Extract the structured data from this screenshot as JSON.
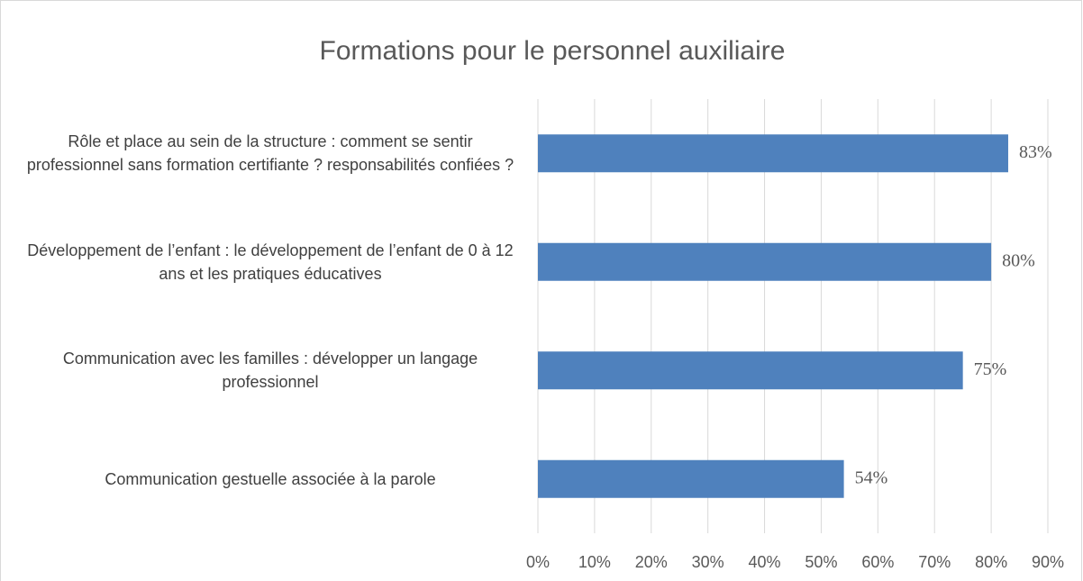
{
  "chart_data": {
    "type": "bar",
    "orientation": "horizontal",
    "title": "Formations pour le personnel auxiliaire",
    "categories": [
      "Rôle et place au sein de la structure : comment se sentir professionnel sans formation certifiante ? responsabilités confiées ?",
      "Développement de l’enfant : le développement de l’enfant de 0 à 12 ans et les pratiques éducatives",
      "Communication avec les familles : développer un langage professionnel",
      "Communication gestuelle associée à la parole"
    ],
    "values": [
      83,
      80,
      75,
      54
    ],
    "value_labels": [
      "83%",
      "80%",
      "75%",
      "54%"
    ],
    "color": "#4f81bd",
    "xlim": [
      0,
      90
    ],
    "xticks": [
      {
        "value": 0,
        "label": "0%"
      },
      {
        "value": 10,
        "label": "10%"
      },
      {
        "value": 20,
        "label": "20%"
      },
      {
        "value": 30,
        "label": "30%"
      },
      {
        "value": 40,
        "label": "40%"
      },
      {
        "value": 50,
        "label": "50%"
      },
      {
        "value": 60,
        "label": "60%"
      },
      {
        "value": 70,
        "label": "70%"
      },
      {
        "value": 80,
        "label": "80%"
      },
      {
        "value": 90,
        "label": "90%"
      }
    ],
    "grid": true
  }
}
